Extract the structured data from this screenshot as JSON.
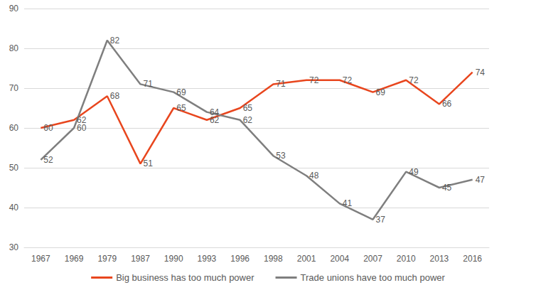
{
  "chart_data": {
    "type": "line",
    "categories": [
      "1967",
      "1969",
      "1979",
      "1987",
      "1990",
      "1993",
      "1996",
      "1998",
      "2001",
      "2004",
      "2007",
      "2010",
      "2013",
      "2016"
    ],
    "series": [
      {
        "name": "Big business has too much power",
        "color": "#e8461e",
        "values": [
          60,
          62,
          68,
          51,
          65,
          62,
          65,
          71,
          72,
          72,
          69,
          72,
          66,
          74
        ]
      },
      {
        "name": "Trade unions have too much power",
        "color": "#7f7f7f",
        "values": [
          52,
          60,
          82,
          71,
          69,
          64,
          62,
          53,
          48,
          41,
          37,
          49,
          45,
          47
        ]
      }
    ],
    "ylim": [
      30,
      90
    ],
    "yticks": [
      30,
      40,
      50,
      60,
      70,
      80,
      90
    ],
    "grid": true,
    "legend": "bottom",
    "data_labels": true
  }
}
